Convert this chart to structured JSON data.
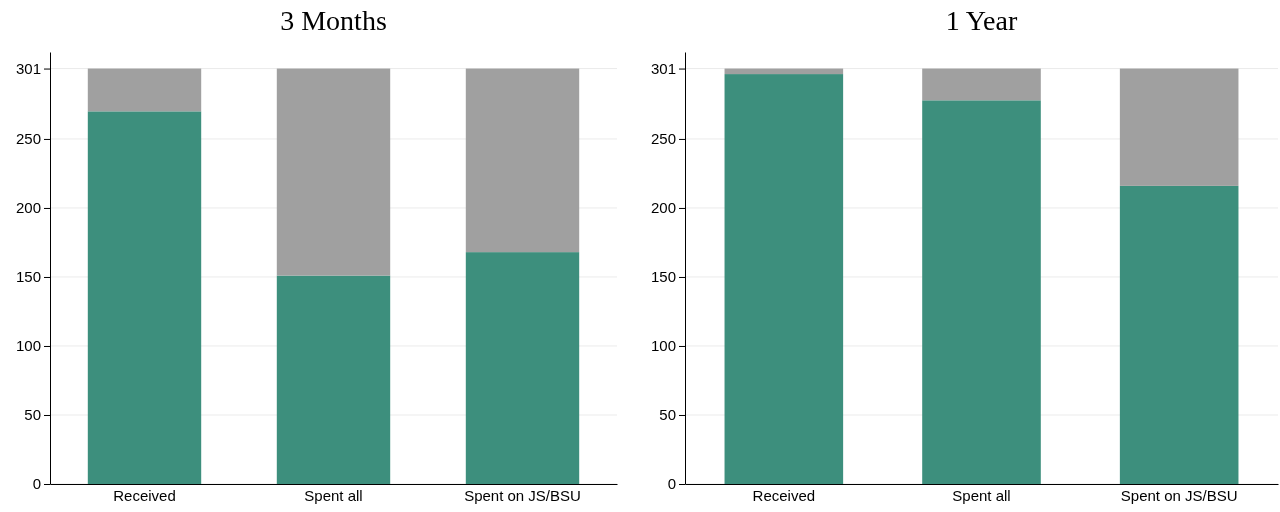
{
  "chart_data": [
    {
      "type": "bar",
      "title": "3 Months",
      "categories": [
        "Received",
        "Spent all",
        "Spent on JS/BSU"
      ],
      "stacked": true,
      "ylim": [
        0,
        313
      ],
      "yticks": [
        0,
        50,
        100,
        150,
        200,
        250,
        301
      ],
      "grid": "y",
      "series": [
        {
          "color": "#3d8f7d",
          "values": [
            270,
            151,
            168
          ]
        },
        {
          "color": "#a0a0a0",
          "values": [
            31,
            150,
            133
          ]
        }
      ]
    },
    {
      "type": "bar",
      "title": "1 Year",
      "categories": [
        "Received",
        "Spent all",
        "Spent on JS/BSU"
      ],
      "stacked": true,
      "ylim": [
        0,
        313
      ],
      "yticks": [
        0,
        50,
        100,
        150,
        200,
        250,
        301
      ],
      "grid": "y",
      "series": [
        {
          "color": "#3d8f7d",
          "values": [
            297,
            278,
            216
          ]
        },
        {
          "color": "#a0a0a0",
          "values": [
            4,
            23,
            85
          ]
        }
      ]
    }
  ]
}
